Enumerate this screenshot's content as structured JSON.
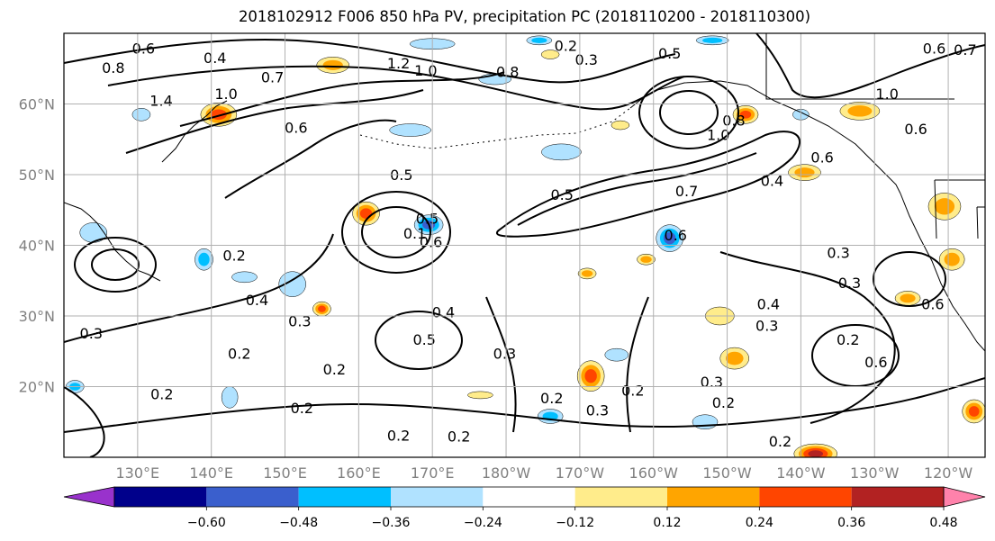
{
  "title": "2018102912 F006 850 hPa PV, precipitation PC (2018110200 - 2018110300)",
  "chart_data": {
    "type": "map-contour",
    "title": "2018102912 F006 850 hPa PV, precipitation PC (2018110200 - 2018110300)",
    "region": "North Pacific",
    "lon_range": [
      120,
      245
    ],
    "lat_range": [
      10,
      70
    ],
    "x_ticks": [
      {
        "lon": 130,
        "label": "130°E"
      },
      {
        "lon": 140,
        "label": "140°E"
      },
      {
        "lon": 150,
        "label": "150°E"
      },
      {
        "lon": 160,
        "label": "160°E"
      },
      {
        "lon": 170,
        "label": "170°E"
      },
      {
        "lon": 180,
        "label": "180°W"
      },
      {
        "lon": 190,
        "label": "170°W"
      },
      {
        "lon": 200,
        "label": "160°W"
      },
      {
        "lon": 210,
        "label": "150°W"
      },
      {
        "lon": 220,
        "label": "140°W"
      },
      {
        "lon": 230,
        "label": "130°W"
      },
      {
        "lon": 240,
        "label": "120°W"
      }
    ],
    "y_ticks": [
      {
        "lat": 60,
        "label": "60°N"
      },
      {
        "lat": 50,
        "label": "50°N"
      },
      {
        "lat": 40,
        "label": "40°N"
      },
      {
        "lat": 30,
        "label": "30°N"
      },
      {
        "lat": 20,
        "label": "20°N"
      }
    ],
    "grid": true,
    "contour_labels": [
      {
        "text": "0.6",
        "lon": 130.8,
        "lat": 67.7
      },
      {
        "text": "0.8",
        "lon": 126.7,
        "lat": 65.0
      },
      {
        "text": "0.4",
        "lon": 140.5,
        "lat": 66.4
      },
      {
        "text": "0.7",
        "lon": 148.3,
        "lat": 63.6
      },
      {
        "text": "1.2",
        "lon": 165.4,
        "lat": 65.6
      },
      {
        "text": "1.0",
        "lon": 169.1,
        "lat": 64.6
      },
      {
        "text": "1.0",
        "lon": 142.0,
        "lat": 61.3
      },
      {
        "text": "1.4",
        "lon": 133.2,
        "lat": 60.3
      },
      {
        "text": "0.6",
        "lon": 151.5,
        "lat": 56.5
      },
      {
        "text": "0.2",
        "lon": 188.1,
        "lat": 68.1
      },
      {
        "text": "0.3",
        "lon": 190.9,
        "lat": 66.1
      },
      {
        "text": "0.5",
        "lon": 202.2,
        "lat": 67.0
      },
      {
        "text": "0.6",
        "lon": 238.1,
        "lat": 67.7
      },
      {
        "text": "0.7",
        "lon": 242.3,
        "lat": 67.5
      },
      {
        "text": "1.0",
        "lon": 231.7,
        "lat": 61.3
      },
      {
        "text": "0.6",
        "lon": 235.6,
        "lat": 56.3
      },
      {
        "text": "0.8",
        "lon": 180.2,
        "lat": 64.4
      },
      {
        "text": "1.0",
        "lon": 208.8,
        "lat": 55.5
      },
      {
        "text": "0.8",
        "lon": 210.9,
        "lat": 57.5
      },
      {
        "text": "0.6",
        "lon": 222.9,
        "lat": 52.3
      },
      {
        "text": "0.4",
        "lon": 216.1,
        "lat": 49.0
      },
      {
        "text": "0.7",
        "lon": 204.5,
        "lat": 47.5
      },
      {
        "text": "0.5",
        "lon": 187.6,
        "lat": 47.0
      },
      {
        "text": "0.6",
        "lon": 203.0,
        "lat": 41.3
      },
      {
        "text": "0.5",
        "lon": 165.8,
        "lat": 49.8
      },
      {
        "text": "0.5",
        "lon": 169.3,
        "lat": 43.6
      },
      {
        "text": "0.1",
        "lon": 167.6,
        "lat": 41.5
      },
      {
        "text": "0.6",
        "lon": 169.8,
        "lat": 40.3
      },
      {
        "text": "0.2",
        "lon": 143.1,
        "lat": 38.4
      },
      {
        "text": "0.4",
        "lon": 146.2,
        "lat": 32.1
      },
      {
        "text": "0.3",
        "lon": 152.0,
        "lat": 29.1
      },
      {
        "text": "0.3",
        "lon": 123.7,
        "lat": 27.4
      },
      {
        "text": "0.2",
        "lon": 143.8,
        "lat": 24.5
      },
      {
        "text": "0.2",
        "lon": 156.7,
        "lat": 22.3
      },
      {
        "text": "0.2",
        "lon": 133.3,
        "lat": 18.8
      },
      {
        "text": "0.2",
        "lon": 152.3,
        "lat": 16.8
      },
      {
        "text": "0.2",
        "lon": 165.4,
        "lat": 12.9
      },
      {
        "text": "0.2",
        "lon": 173.6,
        "lat": 12.8
      },
      {
        "text": "0.4",
        "lon": 171.5,
        "lat": 30.4
      },
      {
        "text": "0.5",
        "lon": 168.9,
        "lat": 26.5
      },
      {
        "text": "0.3",
        "lon": 179.8,
        "lat": 24.5
      },
      {
        "text": "0.2",
        "lon": 186.2,
        "lat": 18.2
      },
      {
        "text": "0.3",
        "lon": 192.4,
        "lat": 16.5
      },
      {
        "text": "0.2",
        "lon": 197.2,
        "lat": 19.3
      },
      {
        "text": "0.3",
        "lon": 207.9,
        "lat": 20.5
      },
      {
        "text": "0.2",
        "lon": 209.5,
        "lat": 17.6
      },
      {
        "text": "0.2",
        "lon": 217.2,
        "lat": 12.1
      },
      {
        "text": "0.4",
        "lon": 215.6,
        "lat": 31.5
      },
      {
        "text": "0.3",
        "lon": 215.4,
        "lat": 28.5
      },
      {
        "text": "0.3",
        "lon": 225.1,
        "lat": 38.8
      },
      {
        "text": "0.3",
        "lon": 226.6,
        "lat": 34.5
      },
      {
        "text": "0.2",
        "lon": 226.4,
        "lat": 26.5
      },
      {
        "text": "0.6",
        "lon": 230.2,
        "lat": 23.3
      },
      {
        "text": "0.6",
        "lon": 237.9,
        "lat": 31.5
      }
    ],
    "colorbar": {
      "boundaries": [
        -0.6,
        -0.48,
        -0.36,
        -0.24,
        -0.12,
        0.12,
        0.24,
        0.36,
        0.48,
        0.6
      ],
      "tick_labels": [
        "−0.60",
        "−0.48",
        "−0.36",
        "−0.24",
        "−0.12",
        "0.12",
        "0.24",
        "0.36",
        "0.48",
        "0.60"
      ],
      "colors": [
        "#9932cc",
        "#00008b",
        "#3a5fcd",
        "#00bfff",
        "#b0e2ff",
        "#ffffff",
        "#ffec8b",
        "#ffa500",
        "#ff4500",
        "#b22222",
        "#ff82ab"
      ],
      "extend": "both"
    },
    "precip_features": [
      {
        "lon": 169.5,
        "lat": 42.9,
        "rx": 16,
        "ry": 11,
        "lvl": -3
      },
      {
        "lon": 202.2,
        "lat": 41.0,
        "rx": 15,
        "ry": 15,
        "lvl": -3
      },
      {
        "lon": 186.0,
        "lat": 15.8,
        "rx": 14,
        "ry": 8,
        "lvl": -2
      },
      {
        "lon": 139.0,
        "lat": 38.0,
        "rx": 10,
        "ry": 12,
        "lvl": -2
      },
      {
        "lon": 121.5,
        "lat": 20.0,
        "rx": 10,
        "ry": 7,
        "lvl": -2
      },
      {
        "lon": 187.5,
        "lat": 53.2,
        "rx": 22,
        "ry": 9,
        "lvl": -1
      },
      {
        "lon": 151.0,
        "lat": 34.5,
        "rx": 15,
        "ry": 14,
        "lvl": -1
      },
      {
        "lon": 144.5,
        "lat": 35.5,
        "rx": 14,
        "ry": 6,
        "lvl": -1
      },
      {
        "lon": 124.0,
        "lat": 41.8,
        "rx": 15,
        "ry": 11,
        "lvl": -1
      },
      {
        "lon": 130.5,
        "lat": 58.5,
        "rx": 10,
        "ry": 7,
        "lvl": -1
      },
      {
        "lon": 167.0,
        "lat": 56.3,
        "rx": 23,
        "ry": 7,
        "lvl": -1
      },
      {
        "lon": 170.0,
        "lat": 68.5,
        "rx": 25,
        "ry": 6,
        "lvl": -1
      },
      {
        "lon": 184.5,
        "lat": 69.0,
        "rx": 14,
        "ry": 5,
        "lvl": -2
      },
      {
        "lon": 208.0,
        "lat": 69.0,
        "rx": 18,
        "ry": 5,
        "lvl": -2
      },
      {
        "lon": 142.5,
        "lat": 18.5,
        "rx": 9,
        "ry": 12,
        "lvl": -1
      },
      {
        "lon": 195.0,
        "lat": 24.5,
        "rx": 13,
        "ry": 7,
        "lvl": -1
      },
      {
        "lon": 207.0,
        "lat": 15.0,
        "rx": 14,
        "ry": 8,
        "lvl": -1
      },
      {
        "lon": 220.0,
        "lat": 58.5,
        "rx": 9,
        "ry": 6,
        "lvl": -1
      },
      {
        "lon": 178.5,
        "lat": 63.5,
        "rx": 18,
        "ry": 6,
        "lvl": -1
      },
      {
        "lon": 141.0,
        "lat": 58.5,
        "rx": 20,
        "ry": 13,
        "lvl": 3
      },
      {
        "lon": 156.5,
        "lat": 65.5,
        "rx": 18,
        "ry": 9,
        "lvl": 2
      },
      {
        "lon": 161.0,
        "lat": 44.5,
        "rx": 15,
        "ry": 13,
        "lvl": 3
      },
      {
        "lon": 212.5,
        "lat": 58.5,
        "rx": 14,
        "ry": 10,
        "lvl": 3
      },
      {
        "lon": 228.0,
        "lat": 59.0,
        "rx": 22,
        "ry": 10,
        "lvl": 2
      },
      {
        "lon": 220.5,
        "lat": 50.3,
        "rx": 18,
        "ry": 9,
        "lvl": 2
      },
      {
        "lon": 239.5,
        "lat": 45.5,
        "rx": 18,
        "ry": 15,
        "lvl": 2
      },
      {
        "lon": 240.5,
        "lat": 38.0,
        "rx": 14,
        "ry": 12,
        "lvl": 2
      },
      {
        "lon": 234.5,
        "lat": 32.5,
        "rx": 14,
        "ry": 8,
        "lvl": 2
      },
      {
        "lon": 209.0,
        "lat": 30.0,
        "rx": 16,
        "ry": 10,
        "lvl": 1
      },
      {
        "lon": 211.0,
        "lat": 24.0,
        "rx": 16,
        "ry": 12,
        "lvl": 2
      },
      {
        "lon": 191.5,
        "lat": 21.5,
        "rx": 15,
        "ry": 17,
        "lvl": 3
      },
      {
        "lon": 222.0,
        "lat": 10.5,
        "rx": 24,
        "ry": 11,
        "lvl": 4
      },
      {
        "lon": 243.5,
        "lat": 16.5,
        "rx": 13,
        "ry": 13,
        "lvl": 3
      },
      {
        "lon": 248.0,
        "lat": 25.5,
        "rx": 10,
        "ry": 10,
        "lvl": 2
      },
      {
        "lon": 199.0,
        "lat": 38.0,
        "rx": 10,
        "ry": 6,
        "lvl": 2
      },
      {
        "lon": 191.0,
        "lat": 36.0,
        "rx": 10,
        "ry": 6,
        "lvl": 2
      },
      {
        "lon": 155.0,
        "lat": 31.0,
        "rx": 10,
        "ry": 8,
        "lvl": 3
      },
      {
        "lon": 176.5,
        "lat": 18.8,
        "rx": 14,
        "ry": 4,
        "lvl": 1
      },
      {
        "lon": 186.0,
        "lat": 67.0,
        "rx": 10,
        "ry": 5,
        "lvl": 1
      },
      {
        "lon": 195.5,
        "lat": 57.0,
        "rx": 10,
        "ry": 5,
        "lvl": 1
      }
    ]
  }
}
